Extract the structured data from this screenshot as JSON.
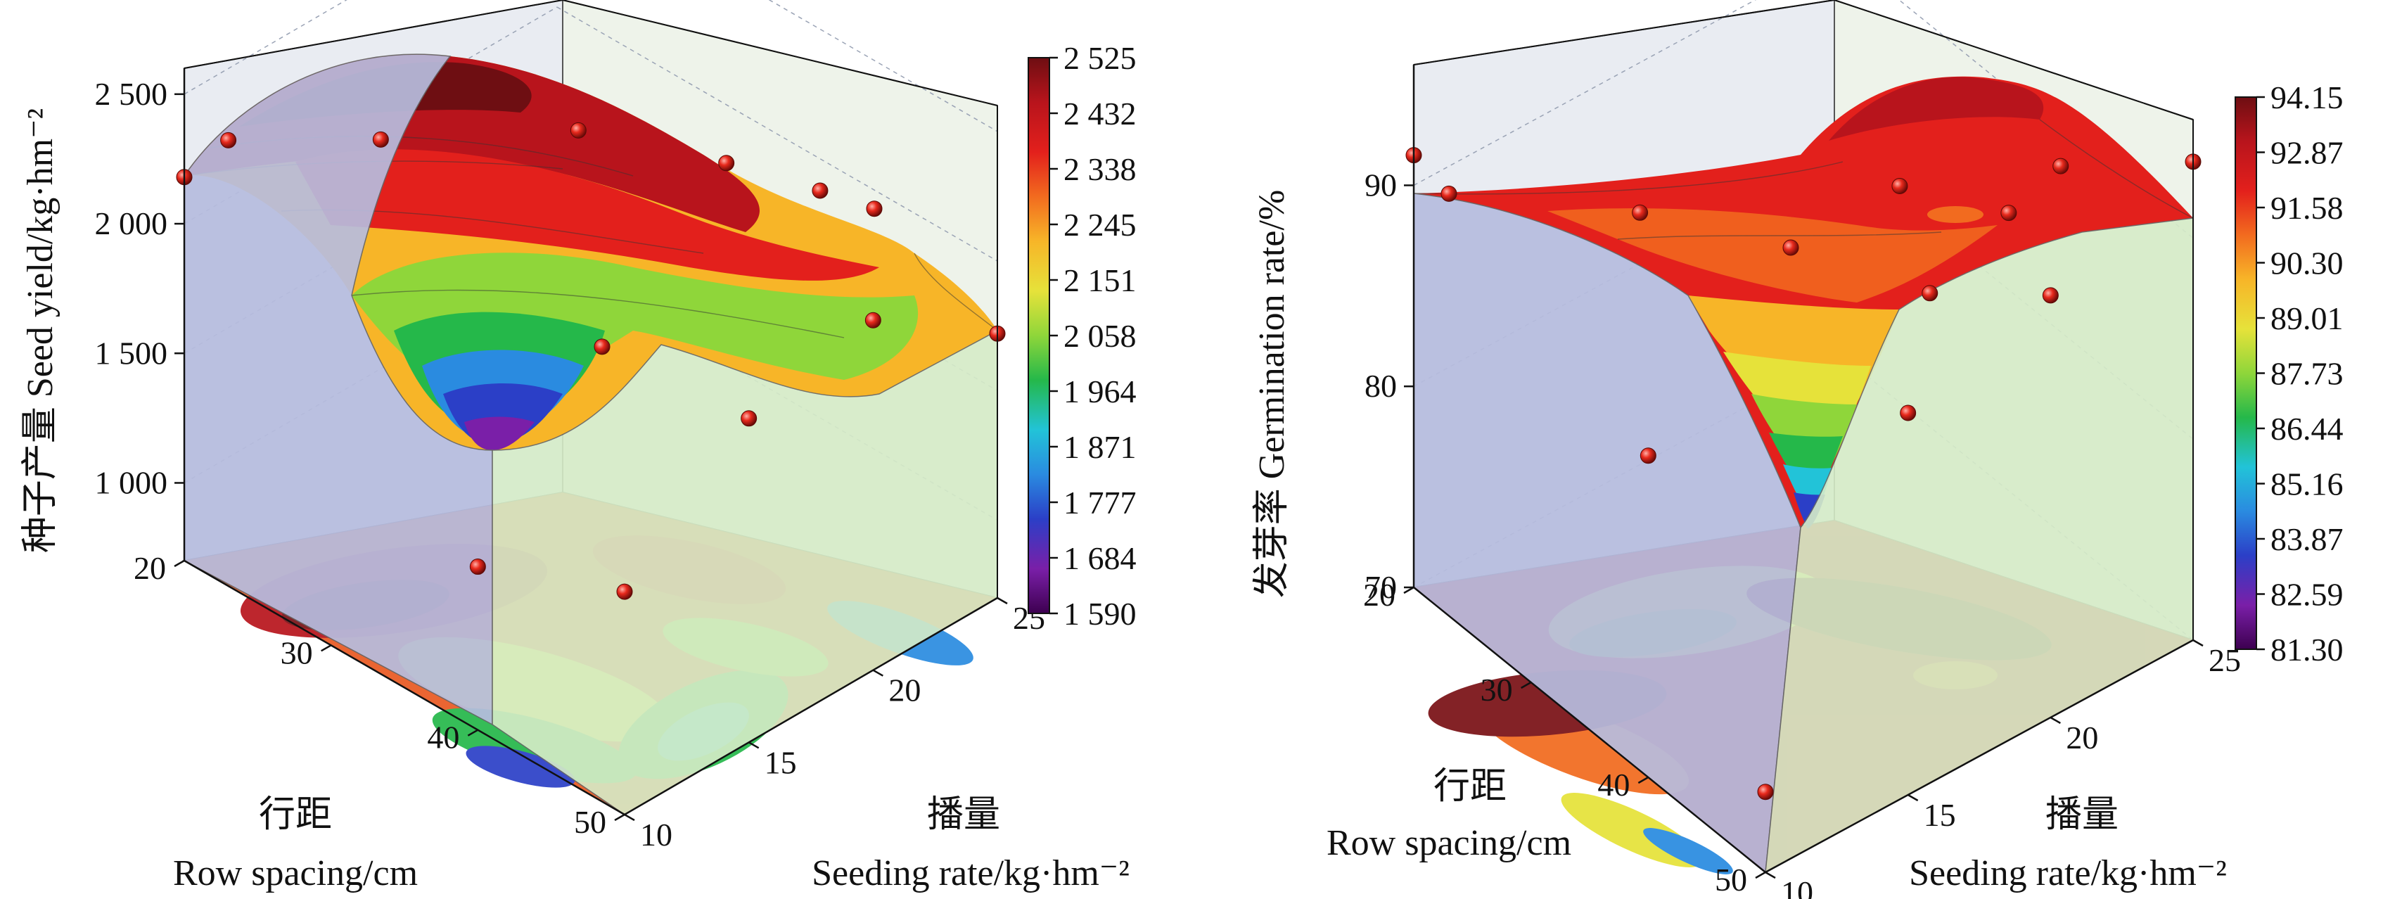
{
  "colormap": [
    "#3d0050",
    "#7a1fa8",
    "#2b3fc7",
    "#2a8be0",
    "#22c3d8",
    "#25b84a",
    "#8fd63a",
    "#e6e23a",
    "#f7b528",
    "#f26b1f",
    "#e3201c",
    "#b8141c",
    "#6e0e12"
  ],
  "chart_data": [
    {
      "type": "surface3d",
      "x": {
        "label_cn": "行距",
        "label_en": "Row spacing/cm",
        "ticks": [
          "20",
          "30",
          "40",
          "50"
        ],
        "range": [
          20,
          50
        ]
      },
      "y": {
        "label_cn": "播量",
        "label_en": "Seeding rate/kg·hm⁻²",
        "ticks": [
          "10",
          "15",
          "20",
          "25"
        ],
        "range": [
          10,
          25
        ]
      },
      "z": {
        "label": "种子产量 Seed yield/kg·hm⁻²",
        "ticks": [
          "1 000",
          "1 500",
          "2 000",
          "2 500"
        ],
        "range": [
          700,
          2600
        ]
      },
      "colorbar": {
        "ticks": [
          "2 525",
          "2 432",
          "2 338",
          "2 245",
          "2 151",
          "2 058",
          "1 964",
          "1 871",
          "1 777",
          "1 684",
          "1 590"
        ],
        "min": 1590,
        "max": 2525
      },
      "points": [
        {
          "x": 20,
          "y": 10,
          "z": 2180
        },
        {
          "x": 23,
          "y": 10,
          "z": 2420
        },
        {
          "x": 30,
          "y": 12,
          "z": 2540
        },
        {
          "x": 35,
          "y": 17,
          "z": 2460
        },
        {
          "x": 40,
          "y": 20,
          "z": 2330
        },
        {
          "x": 45,
          "y": 23,
          "z": 2150
        },
        {
          "x": 50,
          "y": 25,
          "z": 1720
        },
        {
          "x": 50,
          "y": 20,
          "z": 2050
        },
        {
          "x": 50,
          "y": 15,
          "z": 1950
        },
        {
          "x": 50,
          "y": 10,
          "z": 1560
        },
        {
          "x": 40,
          "y": 10,
          "z": 1330
        },
        {
          "x": 40,
          "y": 15,
          "z": 1900
        },
        {
          "x": 43,
          "y": 22,
          "z": 2210
        }
      ]
    },
    {
      "type": "surface3d",
      "x": {
        "label_cn": "行距",
        "label_en": "Row spacing/cm",
        "ticks": [
          "20",
          "30",
          "40",
          "50"
        ],
        "range": [
          20,
          50
        ]
      },
      "y": {
        "label_cn": "播量",
        "label_en": "Seeding rate/kg·hm⁻²",
        "ticks": [
          "10",
          "15",
          "20",
          "25"
        ],
        "range": [
          10,
          25
        ]
      },
      "z": {
        "label": "发芽率 Germination rate/%",
        "ticks": [
          "70",
          "80",
          "90"
        ],
        "range": [
          70,
          96
        ]
      },
      "colorbar": {
        "ticks": [
          "94.15",
          "92.87",
          "91.58",
          "90.30",
          "89.01",
          "87.73",
          "86.44",
          "85.16",
          "83.87",
          "82.59",
          "81.30"
        ],
        "min": 81.3,
        "max": 94.15
      },
      "points": [
        {
          "x": 20,
          "y": 10,
          "z": 91.5
        },
        {
          "x": 23,
          "y": 10,
          "z": 91.0
        },
        {
          "x": 32,
          "y": 13,
          "z": 92.0
        },
        {
          "x": 40,
          "y": 15,
          "z": 92.5
        },
        {
          "x": 42,
          "y": 18,
          "z": 94.2
        },
        {
          "x": 46,
          "y": 22,
          "z": 94.0
        },
        {
          "x": 50,
          "y": 25,
          "z": 93.8
        },
        {
          "x": 50,
          "y": 20,
          "z": 91.0
        },
        {
          "x": 50,
          "y": 15,
          "z": 89.0
        },
        {
          "x": 50,
          "y": 10,
          "z": 74.0
        },
        {
          "x": 40,
          "y": 10,
          "z": 86.0
        },
        {
          "x": 47,
          "y": 17,
          "z": 92.0
        },
        {
          "x": 44,
          "y": 21,
          "z": 91.5
        }
      ]
    }
  ]
}
